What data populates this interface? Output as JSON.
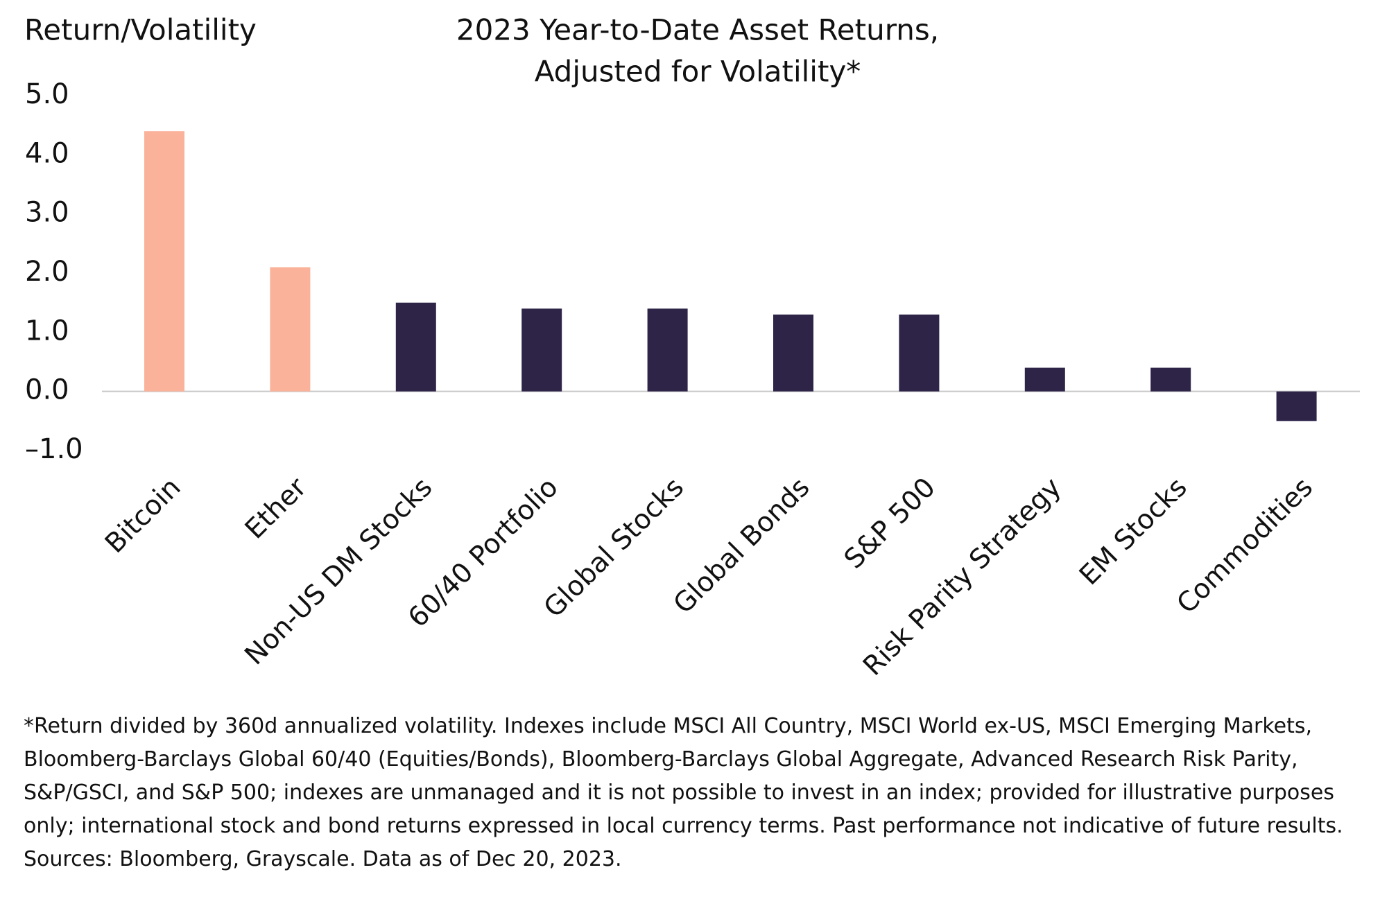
{
  "chart_data": {
    "type": "bar",
    "title": [
      "2023 Year-to-Date Asset Returns,",
      "Adjusted for Volatility*"
    ],
    "y_label": "Return/Volatility",
    "categories": [
      "Bitcoin",
      "Ether",
      "Non-US DM Stocks",
      "60/40 Portfolio",
      "Global Stocks",
      "Global Bonds",
      "S&P 500",
      "Risk Parity Strategy",
      "EM Stocks",
      "Commodities"
    ],
    "values": [
      4.4,
      2.1,
      1.5,
      1.4,
      1.4,
      1.3,
      1.3,
      0.4,
      0.4,
      -0.5
    ],
    "colors": [
      "#fbb29a",
      "#fbb29a",
      "#2e2448",
      "#2e2448",
      "#2e2448",
      "#2e2448",
      "#2e2448",
      "#2e2448",
      "#2e2448",
      "#2e2448"
    ],
    "ylim": [
      -1,
      5
    ],
    "yticks": [
      {
        "value": -1,
        "label": "–1.0"
      },
      {
        "value": 0,
        "label": "0.0"
      },
      {
        "value": 1,
        "label": "1.0"
      },
      {
        "value": 2,
        "label": "2.0"
      },
      {
        "value": 3,
        "label": "3.0"
      },
      {
        "value": 4,
        "label": "4.0"
      },
      {
        "value": 5,
        "label": "5.0"
      }
    ],
    "grid": false,
    "footnote": "*Return divided by 360d annualized volatility. Indexes include MSCI All Country, MSCI World ex-US, MSCI Emerging Markets, Bloomberg-Barclays Global 60/40 (Equities/Bonds), Bloomberg-Barclays Global Aggregate, Advanced Research Risk Parity, S&P/GSCI, and S&P 500; indexes are unmanaged and it is not possible to invest in an index; provided for illustrative purposes only; international stock and bond returns expressed in local currency terms. Past performance not indicative of future results. Sources: Bloomberg, Grayscale. Data as of Dec 20, 2023."
  }
}
